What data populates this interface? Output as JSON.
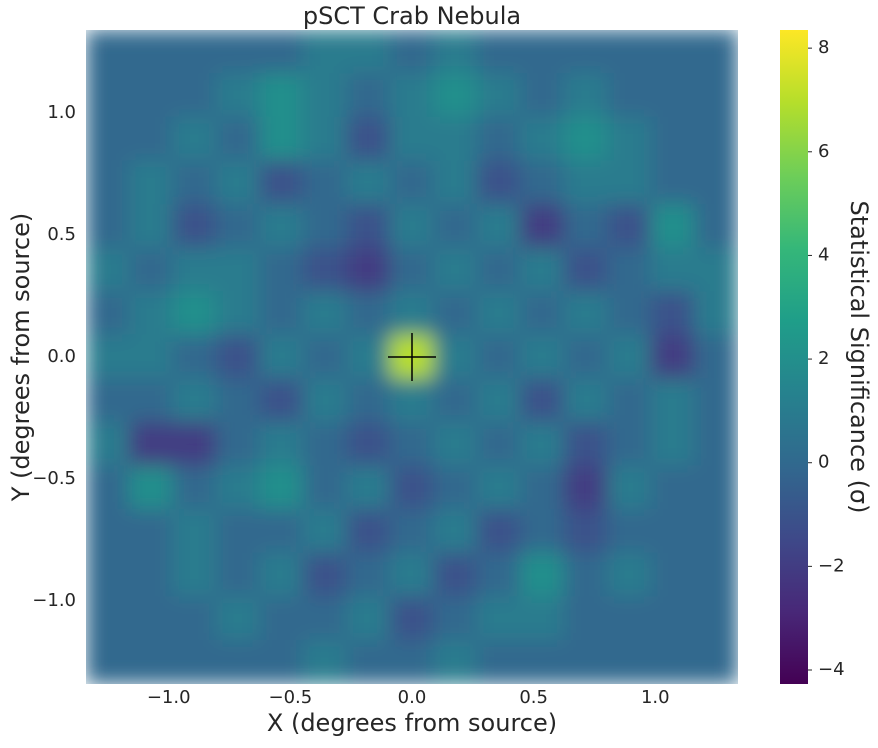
{
  "chart_data": {
    "type": "heatmap",
    "title": "pSCT Crab Nebula",
    "xlabel": "X (degrees from source)",
    "ylabel": "Y (degrees from source)",
    "colorbar_label": "Statistical Significance (σ)",
    "colormap": "viridis",
    "xlim": [
      -1.34,
      1.34
    ],
    "ylim": [
      -1.34,
      1.34
    ],
    "xticks": [
      {
        "value": -1,
        "label": "−1.0"
      },
      {
        "value": -0.5,
        "label": "−0.5"
      },
      {
        "value": 0,
        "label": "0.0"
      },
      0.5,
      {
        "value": 1,
        "label": "1.0"
      }
    ],
    "yticks": [
      {
        "value": -1,
        "label": "−1.0"
      },
      {
        "value": -0.5,
        "label": "−0.5"
      },
      {
        "value": 0,
        "label": "0.0"
      },
      0.5,
      {
        "value": 1,
        "label": "1.0"
      }
    ],
    "clim": [
      -4.27,
      8.35
    ],
    "cticks": [
      {
        "value": -4,
        "label": "−4"
      },
      {
        "value": -2,
        "label": "−2"
      },
      0,
      2,
      4,
      6,
      8
    ],
    "marker": {
      "x": 0,
      "y": 0,
      "color": "#000000"
    },
    "z": [
      [
        0,
        0,
        0,
        0,
        0,
        1,
        1,
        0,
        1,
        0,
        0,
        0,
        0,
        0,
        0
      ],
      [
        0,
        0,
        0,
        1,
        2,
        1,
        0,
        1,
        2,
        1,
        0,
        1,
        0,
        0,
        0
      ],
      [
        0,
        0,
        1,
        0,
        2,
        1,
        -1,
        1,
        1,
        0,
        1,
        2,
        1,
        0,
        0
      ],
      [
        0,
        1,
        0,
        1,
        -1,
        0,
        1,
        0,
        1,
        -1,
        0,
        1,
        1,
        0,
        0
      ],
      [
        0,
        1,
        -1,
        0,
        1,
        0,
        -1,
        1,
        0,
        1,
        -2,
        0,
        -1,
        2,
        0
      ],
      [
        1,
        0,
        1,
        1,
        0,
        -1,
        -2,
        0,
        1,
        0,
        1,
        -1,
        0,
        1,
        1
      ],
      [
        0,
        1,
        2,
        1,
        0,
        1,
        0,
        1,
        0,
        1,
        0,
        1,
        0,
        -1,
        1
      ],
      [
        1,
        1,
        0,
        -1,
        1,
        0,
        1,
        7,
        1,
        0,
        1,
        0,
        1,
        -2,
        0
      ],
      [
        0,
        0,
        1,
        0,
        -1,
        1,
        0,
        1,
        0,
        1,
        -1,
        1,
        0,
        1,
        0
      ],
      [
        1,
        -2,
        -2,
        0,
        1,
        0,
        -1,
        0,
        1,
        0,
        1,
        -1,
        0,
        1,
        0
      ],
      [
        0,
        2,
        0,
        1,
        2,
        0,
        1,
        -1,
        0,
        1,
        0,
        -2,
        1,
        0,
        0
      ],
      [
        0,
        0,
        1,
        0,
        0,
        1,
        -1,
        0,
        1,
        -1,
        0,
        -1,
        0,
        0,
        0
      ],
      [
        0,
        0,
        1,
        0,
        1,
        -1,
        0,
        1,
        -1,
        0,
        2,
        0,
        1,
        0,
        0
      ],
      [
        0,
        0,
        0,
        1,
        0,
        0,
        1,
        -1,
        0,
        1,
        1,
        0,
        0,
        0,
        0
      ],
      [
        0,
        0,
        0,
        0,
        0,
        1,
        0,
        0,
        1,
        0,
        0,
        0,
        0,
        0,
        0
      ]
    ]
  }
}
